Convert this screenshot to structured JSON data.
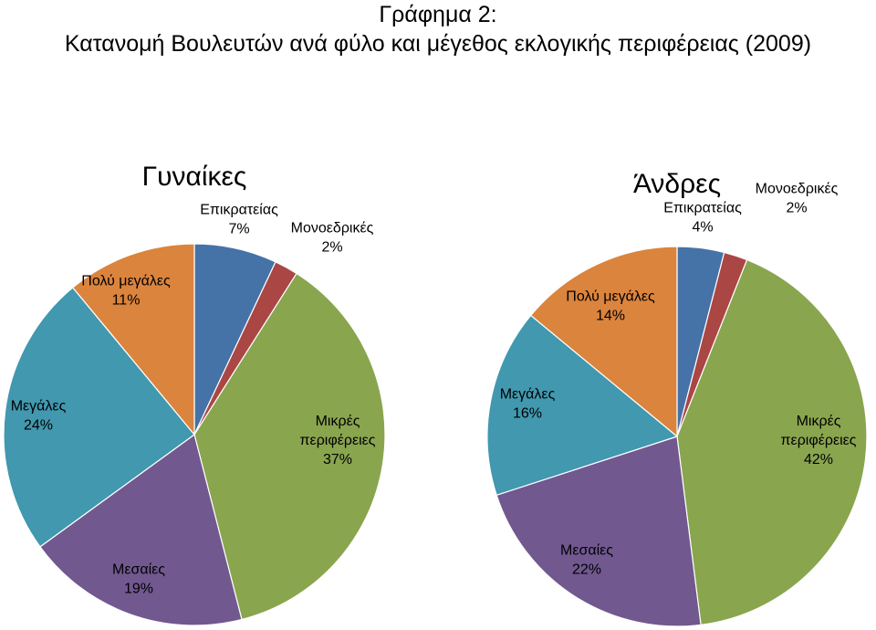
{
  "title": {
    "line1": "Γράφημα 2:",
    "line2": "Κατανομή Βουλευτών ανά φύλο και μέγεθος εκλογικής περιφέρειας (2009)"
  },
  "chart_data": [
    {
      "type": "pie",
      "title": "Γυναίκες",
      "slices": [
        {
          "label": "Επικρατείας",
          "value": 7,
          "display": "7%",
          "color": "#4572a7"
        },
        {
          "label": "Μονοεδρικές",
          "value": 2,
          "display": "2%",
          "color": "#aa4643"
        },
        {
          "label": "Μικρές περιφέρειες",
          "value": 37,
          "display": "37%",
          "color": "#89a54e"
        },
        {
          "label": "Μεσαίες",
          "value": 19,
          "display": "19%",
          "color": "#71588f"
        },
        {
          "label": "Μεγάλες",
          "value": 24,
          "display": "24%",
          "color": "#4198af"
        },
        {
          "label": "Πολύ μεγάλες",
          "value": 11,
          "display": "11%",
          "color": "#db843d"
        }
      ],
      "labels": [
        {
          "lines": [
            "Επικρατείας",
            "7%"
          ]
        },
        {
          "lines": [
            "Μονοεδρικές",
            "2%"
          ]
        },
        {
          "lines": [
            "Μικρές",
            "περιφέρειες",
            "37%"
          ]
        },
        {
          "lines": [
            "Μεσαίες",
            "19%"
          ]
        },
        {
          "lines": [
            "Μεγάλες",
            "24%"
          ]
        },
        {
          "lines": [
            "Πολύ μεγάλες",
            "11%"
          ]
        }
      ]
    },
    {
      "type": "pie",
      "title": "Άνδρες",
      "slices": [
        {
          "label": "Επικρατείας",
          "value": 4,
          "display": "4%",
          "color": "#4572a7"
        },
        {
          "label": "Μονοεδρικές",
          "value": 2,
          "display": "2%",
          "color": "#aa4643"
        },
        {
          "label": "Μικρές περιφέρειες",
          "value": 42,
          "display": "42%",
          "color": "#89a54e"
        },
        {
          "label": "Μεσαίες",
          "value": 22,
          "display": "22%",
          "color": "#71588f"
        },
        {
          "label": "Μεγάλες",
          "value": 16,
          "display": "16%",
          "color": "#4198af"
        },
        {
          "label": "Πολύ μεγάλες",
          "value": 14,
          "display": "14%",
          "color": "#db843d"
        }
      ],
      "labels": [
        {
          "lines": [
            "Επικρατείας",
            "4%"
          ]
        },
        {
          "lines": [
            "Μονοεδρικές",
            "2%"
          ]
        },
        {
          "lines": [
            "Μικρές",
            "περιφέρειες",
            "42%"
          ]
        },
        {
          "lines": [
            "Μεσαίες",
            "22%"
          ]
        },
        {
          "lines": [
            "Μεγάλες",
            "16%"
          ]
        },
        {
          "lines": [
            "Πολύ μεγάλες",
            "14%"
          ]
        }
      ]
    }
  ]
}
